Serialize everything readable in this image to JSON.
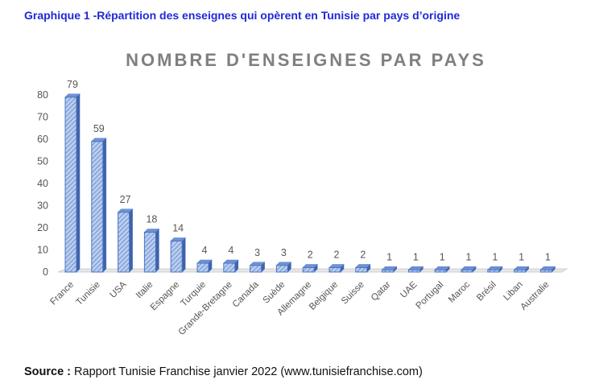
{
  "caption": "Graphique 1 -Répartition des enseignes qui opèrent en Tunisie par pays d’origine",
  "source": {
    "label": "Source :",
    "text": " Rapport Tunisie Franchise janvier 2022 (www.tunisiefranchise.com)"
  },
  "colors": {
    "bar_fill": "#b9cdee",
    "bar_stroke": "#4a74c4",
    "bar_hatch": "#4a74c4",
    "axis_text": "#555555",
    "title_text": "#7f7f7f",
    "caption": "#1f2ad6"
  },
  "chart_data": {
    "type": "bar",
    "title": "NOMBRE D'ENSEIGNES PAR PAYS",
    "xlabel": "",
    "ylabel": "",
    "ylim": [
      0,
      80
    ],
    "yticks": [
      0,
      10,
      20,
      30,
      40,
      50,
      60,
      70,
      80
    ],
    "grid": false,
    "style": "3d-hatched-columns",
    "categories": [
      "France",
      "Tunisie",
      "USA",
      "Italie",
      "Espagne",
      "Turquie",
      "Grande-Bretagne",
      "Canada",
      "Suède",
      "Allemagne",
      "Belgique",
      "Suisse",
      "Qatar",
      "UAE",
      "Portugal",
      "Maroc",
      "Brésil",
      "Liban",
      "Australie"
    ],
    "values": [
      79,
      59,
      27,
      18,
      14,
      4,
      4,
      3,
      3,
      2,
      2,
      2,
      1,
      1,
      1,
      1,
      1,
      1,
      1
    ]
  }
}
